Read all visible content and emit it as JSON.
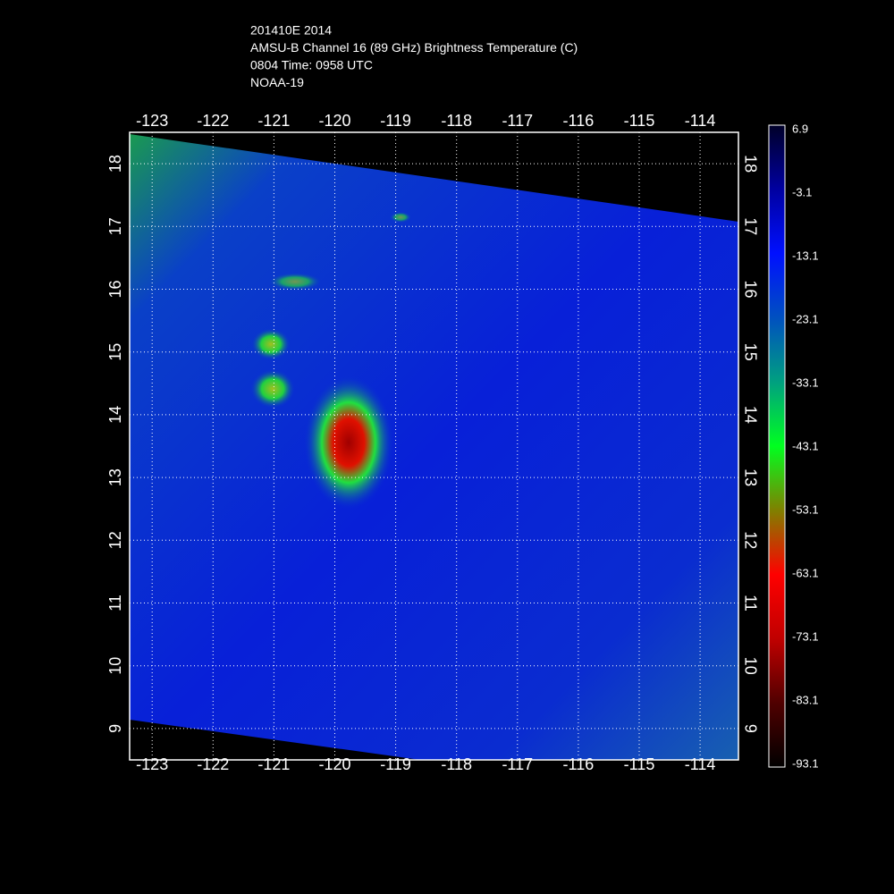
{
  "title": [
    "201410E 2014",
    "AMSU-B Channel 16 (89 GHz) Brightness Temperature (C)",
    "0804 Time: 0958 UTC",
    "NOAA-19"
  ],
  "map": {
    "xlim": [
      -123.37,
      -113.37
    ],
    "ylim": [
      8.5,
      18.5
    ],
    "xticks": [
      -123,
      -122,
      -121,
      -120,
      -119,
      -118,
      -117,
      -116,
      -115,
      -114
    ],
    "yticks": [
      9,
      10,
      11,
      12,
      13,
      14,
      15,
      16,
      17,
      18
    ]
  },
  "colorbar": {
    "lim": [
      -93.5,
      7.6
    ],
    "ticks": [
      6.9,
      -3.1,
      -13.1,
      -23.1,
      -33.1,
      -43.1,
      -53.1,
      -63.1,
      -73.1,
      -83.1,
      -93.1
    ]
  }
}
